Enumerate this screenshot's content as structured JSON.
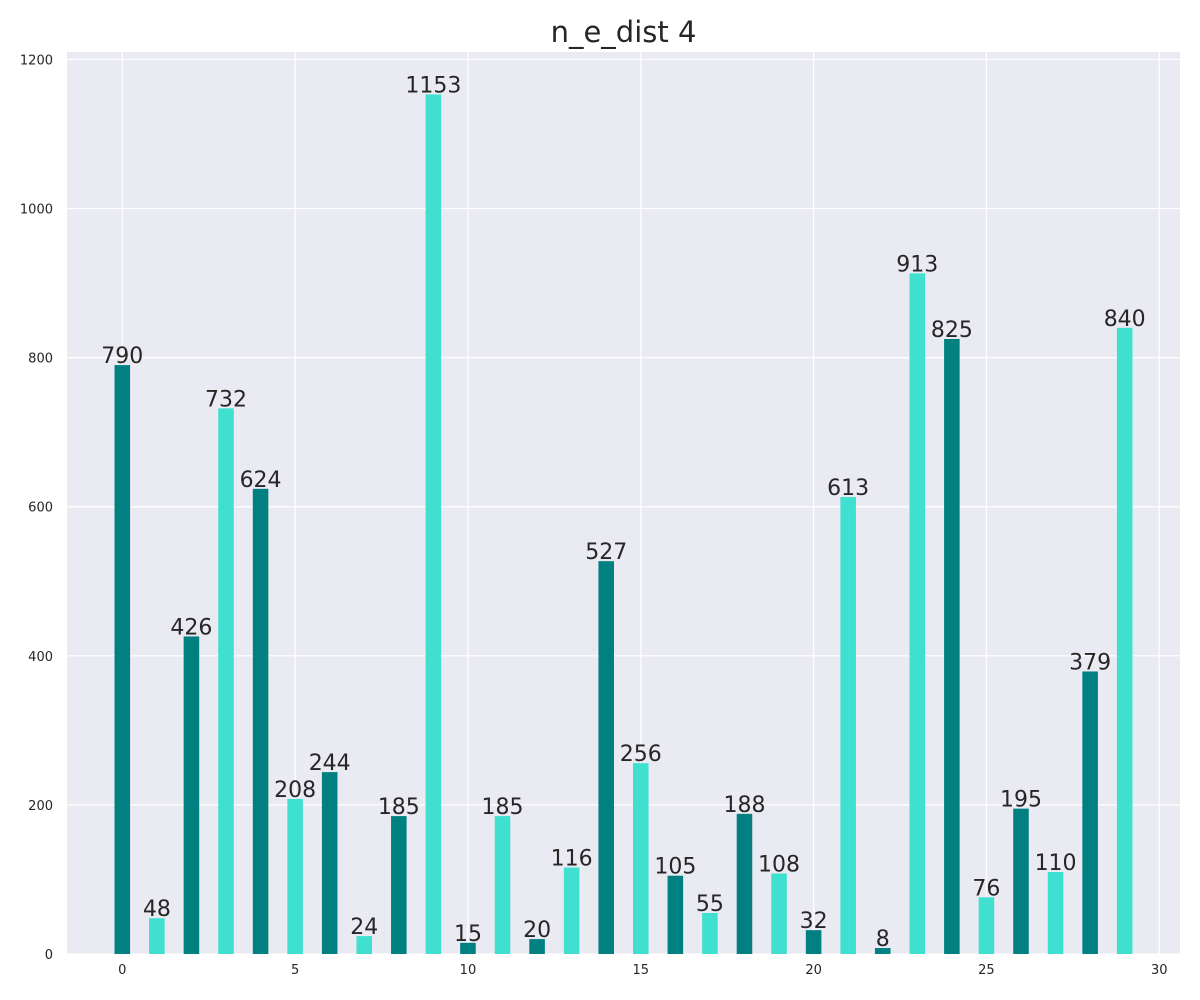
{
  "chart_data": {
    "type": "bar",
    "title": "n_e_dist 4",
    "xlabel": "",
    "ylabel": "",
    "x": [
      0,
      1,
      2,
      3,
      4,
      5,
      6,
      7,
      8,
      9,
      10,
      11,
      12,
      13,
      14,
      15,
      16,
      17,
      18,
      19,
      20,
      21,
      22,
      23,
      24,
      25,
      26,
      27,
      28,
      29
    ],
    "values": [
      790,
      48,
      426,
      732,
      624,
      208,
      244,
      24,
      185,
      1153,
      15,
      185,
      20,
      116,
      527,
      256,
      105,
      55,
      188,
      108,
      32,
      613,
      8,
      913,
      825,
      76,
      195,
      110,
      379,
      840
    ],
    "colors": [
      "#008080",
      "#40e0d0"
    ],
    "xlim": [
      -1.6,
      30.6
    ],
    "ylim": [
      0,
      1210
    ],
    "xticks": [
      0,
      5,
      10,
      15,
      20,
      25,
      30
    ],
    "yticks": [
      0,
      200,
      400,
      600,
      800,
      1000,
      1200
    ],
    "grid": true,
    "background": "#eaeaf2"
  }
}
